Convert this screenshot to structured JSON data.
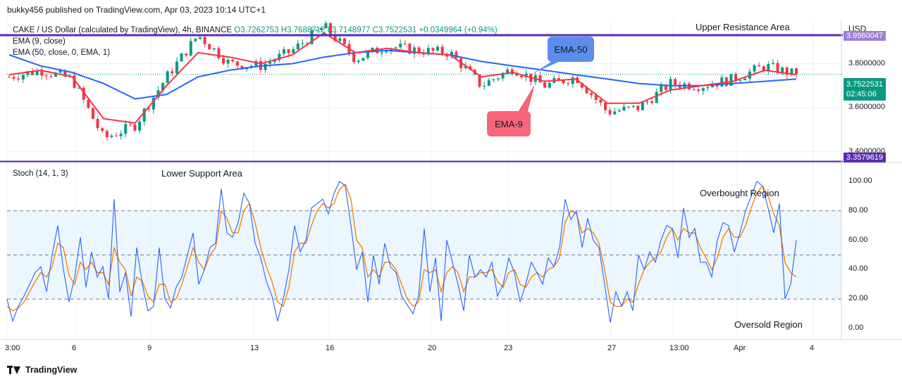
{
  "publisher": "bukky456 published on TradingView.com, Apr 03, 2023 10:14 UTC+1",
  "legend": {
    "symbol": "CAKE / US Dollar (calculated by TradingView), 4h, BINANCE",
    "ohlc": "O3.7262753  H3.7688712  L3.7148977  C3.7522531  +0.0349964 (+0.94%)",
    "ema9": "EMA (9, close)",
    "ema50": "EMA (50, close, 0, EMA, 1)",
    "stoch": "Stoch (14, 1, 3)"
  },
  "currency": "USD",
  "annotations": {
    "upper_resistance": "Upper Resistance Area",
    "lower_support": "Lower Support Area",
    "overbought": "Overbought Region",
    "oversold": "Oversold Region",
    "ema50_callout": "EMA-50",
    "ema9_callout": "EMA-9"
  },
  "price_tags": {
    "resistance": "3.9960047",
    "support": "3.3579619",
    "last_price": "3.7522531",
    "countdown": "02:45:06"
  },
  "footer": "TradingView",
  "colors": {
    "up": "#089981",
    "down": "#f23645",
    "ema9": "#f23645",
    "ema50": "#2962ff",
    "stoch_k": "#2962ff",
    "stoch_d": "#f57c00",
    "level_line": "#5b2bb5",
    "stoch_band": "#e3f2fd",
    "ema50_callout_bg": "#5b8def",
    "ema9_callout_bg": "#f7667a"
  },
  "chart_data": [
    {
      "type": "candlestick",
      "title": "CAKE / US Dollar (calculated by TradingView), 4h, BINANCE",
      "y_ticks": [
        "3.8000000",
        "3.6000000",
        "3.4000000"
      ],
      "ylim": [
        3.37,
        4.0
      ],
      "x_ticks": [
        "3:00",
        "6",
        "9",
        "13",
        "16",
        "20",
        "23",
        "27",
        "13:00",
        "Apr",
        "4"
      ],
      "horizontal_levels": [
        {
          "label": "Upper Resistance Area",
          "value": 3.9960047
        },
        {
          "label": "Lower Support Area",
          "value": 3.3579619
        }
      ],
      "last_close": 3.7522531,
      "approx_close_path": [
        {
          "x": "3:00",
          "y": 3.74
        },
        {
          "x": "6",
          "y": 3.77
        },
        {
          "x": "9",
          "y": 3.73
        },
        {
          "x": "10",
          "y": 3.46
        },
        {
          "x": "12",
          "y": 3.52
        },
        {
          "x": "13",
          "y": 3.74
        },
        {
          "x": "14",
          "y": 3.93
        },
        {
          "x": "15",
          "y": 3.8
        },
        {
          "x": "16",
          "y": 3.79
        },
        {
          "x": "17",
          "y": 3.86
        },
        {
          "x": "18",
          "y": 3.97
        },
        {
          "x": "19",
          "y": 3.82
        },
        {
          "x": "20",
          "y": 3.88
        },
        {
          "x": "21",
          "y": 3.86
        },
        {
          "x": "22",
          "y": 3.85
        },
        {
          "x": "23",
          "y": 3.7
        },
        {
          "x": "24",
          "y": 3.78
        },
        {
          "x": "25",
          "y": 3.7
        },
        {
          "x": "26",
          "y": 3.74
        },
        {
          "x": "27",
          "y": 3.58
        },
        {
          "x": "28",
          "y": 3.6
        },
        {
          "x": "29",
          "y": 3.71
        },
        {
          "x": "30",
          "y": 3.7
        },
        {
          "x": "Apr",
          "y": 3.73
        },
        {
          "x": "Apr 2",
          "y": 3.79
        },
        {
          "x": "Apr 3",
          "y": 3.75
        }
      ],
      "series": [
        {
          "name": "EMA (9, close)",
          "approx": [
            3.75,
            3.77,
            3.74,
            3.55,
            3.53,
            3.7,
            3.85,
            3.83,
            3.8,
            3.84,
            3.94,
            3.85,
            3.87,
            3.85,
            3.84,
            3.74,
            3.76,
            3.72,
            3.73,
            3.62,
            3.62,
            3.68,
            3.7,
            3.72,
            3.77,
            3.75
          ]
        },
        {
          "name": "EMA (50, close, 0, EMA, 1)",
          "approx": [
            3.84,
            3.79,
            3.76,
            3.71,
            3.64,
            3.66,
            3.74,
            3.77,
            3.79,
            3.8,
            3.83,
            3.85,
            3.86,
            3.85,
            3.84,
            3.81,
            3.79,
            3.77,
            3.75,
            3.73,
            3.71,
            3.7,
            3.7,
            3.71,
            3.72,
            3.73
          ]
        }
      ]
    },
    {
      "type": "line",
      "title": "Stoch (14, 1, 3)",
      "y_ticks": [
        "100.00",
        "80.00",
        "60.00",
        "40.00",
        "20.00",
        "0.00"
      ],
      "ylim": [
        0,
        100
      ],
      "reference_levels": [
        80,
        50,
        20
      ],
      "x_ticks": [
        "3:00",
        "6",
        "9",
        "13",
        "16",
        "20",
        "23",
        "27",
        "13:00",
        "Apr",
        "4"
      ],
      "series": [
        {
          "name": "%K",
          "values": [
            20,
            5,
            15,
            22,
            30,
            38,
            42,
            25,
            50,
            70,
            40,
            18,
            35,
            62,
            28,
            52,
            35,
            42,
            20,
            88,
            25,
            38,
            8,
            55,
            30,
            12,
            15,
            55,
            20,
            14,
            28,
            35,
            50,
            65,
            30,
            40,
            55,
            58,
            95,
            65,
            62,
            72,
            92,
            85,
            58,
            48,
            32,
            22,
            5,
            20,
            40,
            70,
            52,
            60,
            82,
            85,
            88,
            78,
            92,
            100,
            97,
            70,
            40,
            52,
            18,
            50,
            30,
            58,
            42,
            38,
            22,
            16,
            10,
            22,
            68,
            25,
            48,
            5,
            60,
            45,
            30,
            12,
            50,
            35,
            40,
            35,
            45,
            22,
            30,
            48,
            38,
            18,
            30,
            45,
            38,
            30,
            48,
            42,
            55,
            88,
            74,
            80,
            55,
            75,
            60,
            55,
            30,
            4,
            25,
            15,
            25,
            12,
            50,
            40,
            52,
            45,
            60,
            70,
            68,
            48,
            82,
            62,
            68,
            45,
            45,
            35,
            60,
            72,
            70,
            52,
            65,
            80,
            90,
            100,
            97,
            82,
            65,
            85,
            20,
            30,
            60
          ]
        },
        {
          "name": "%D",
          "values": [
            15,
            12,
            14,
            18,
            25,
            32,
            38,
            35,
            42,
            58,
            55,
            36,
            30,
            45,
            40,
            45,
            38,
            38,
            30,
            55,
            45,
            40,
            22,
            35,
            32,
            22,
            18,
            30,
            30,
            18,
            20,
            30,
            42,
            55,
            45,
            40,
            50,
            55,
            80,
            75,
            65,
            65,
            80,
            85,
            72,
            55,
            42,
            32,
            18,
            15,
            28,
            52,
            58,
            58,
            70,
            80,
            85,
            82,
            85,
            95,
            98,
            88,
            60,
            55,
            35,
            40,
            35,
            45,
            45,
            40,
            30,
            20,
            15,
            18,
            40,
            38,
            40,
            25,
            38,
            42,
            38,
            25,
            35,
            35,
            38,
            38,
            40,
            32,
            28,
            38,
            40,
            30,
            28,
            35,
            38,
            35,
            40,
            42,
            48,
            72,
            80,
            78,
            65,
            68,
            65,
            58,
            40,
            18,
            15,
            15,
            20,
            18,
            30,
            40,
            45,
            48,
            52,
            62,
            68,
            60,
            68,
            65,
            65,
            55,
            48,
            40,
            48,
            62,
            68,
            62,
            62,
            70,
            82,
            92,
            97,
            90,
            78,
            70,
            45,
            38,
            35
          ]
        }
      ]
    }
  ]
}
